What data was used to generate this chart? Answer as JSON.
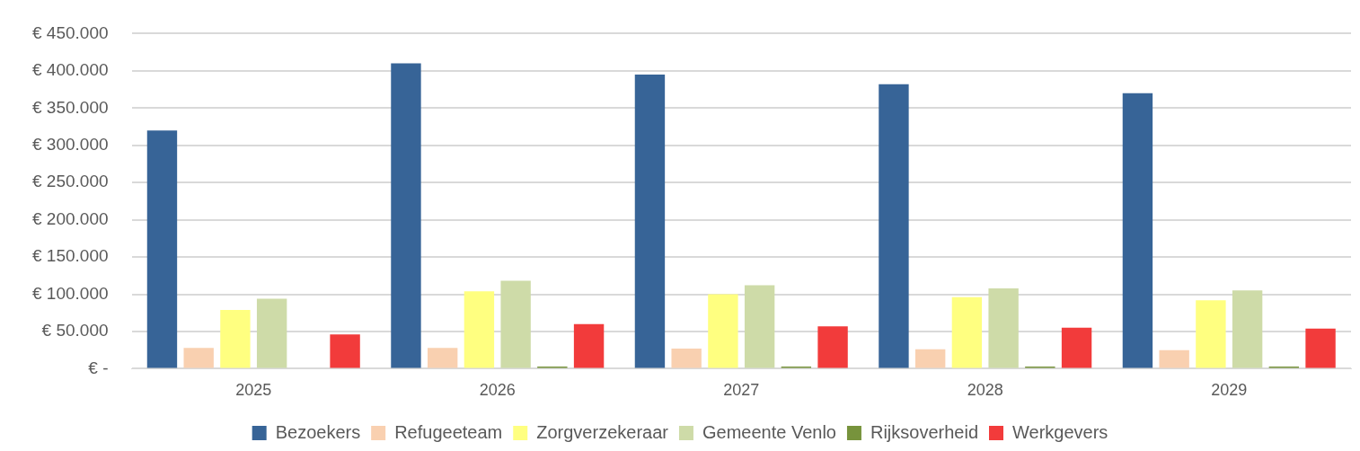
{
  "chart_data": {
    "type": "bar",
    "categories": [
      "2025",
      "2026",
      "2027",
      "2028",
      "2029"
    ],
    "series": [
      {
        "name": "Bezoekers",
        "color": "#376497",
        "values": [
          320000,
          410000,
          395000,
          382000,
          370000
        ]
      },
      {
        "name": "Refugeeteam",
        "color": "#f9d0b0",
        "values": [
          28000,
          28000,
          27000,
          26000,
          25000
        ]
      },
      {
        "name": "Zorgverzekeraar",
        "color": "#ffff80",
        "values": [
          79000,
          104000,
          100000,
          96000,
          92000
        ]
      },
      {
        "name": "Gemeente Venlo",
        "color": "#cedba8",
        "values": [
          94000,
          118000,
          112000,
          108000,
          105000
        ]
      },
      {
        "name": "Rijksoverheid",
        "color": "#77933c",
        "values": [
          0,
          3000,
          3000,
          3000,
          3000
        ]
      },
      {
        "name": "Werkgevers",
        "color": "#f23b3b",
        "values": [
          46000,
          60000,
          57000,
          55000,
          54000
        ]
      }
    ],
    "ylim": [
      0,
      450000
    ],
    "yticks": [
      {
        "value": 0,
        "label": "€ -"
      },
      {
        "value": 50000,
        "label": "€ 50.000"
      },
      {
        "value": 100000,
        "label": "€ 100.000"
      },
      {
        "value": 150000,
        "label": "€ 150.000"
      },
      {
        "value": 200000,
        "label": "€ 200.000"
      },
      {
        "value": 250000,
        "label": "€ 250.000"
      },
      {
        "value": 300000,
        "label": "€ 300.000"
      },
      {
        "value": 350000,
        "label": "€ 350.000"
      },
      {
        "value": 400000,
        "label": "€ 400.000"
      },
      {
        "value": 450000,
        "label": "€ 450.000"
      }
    ],
    "grid": "y",
    "legend": "bottom"
  }
}
